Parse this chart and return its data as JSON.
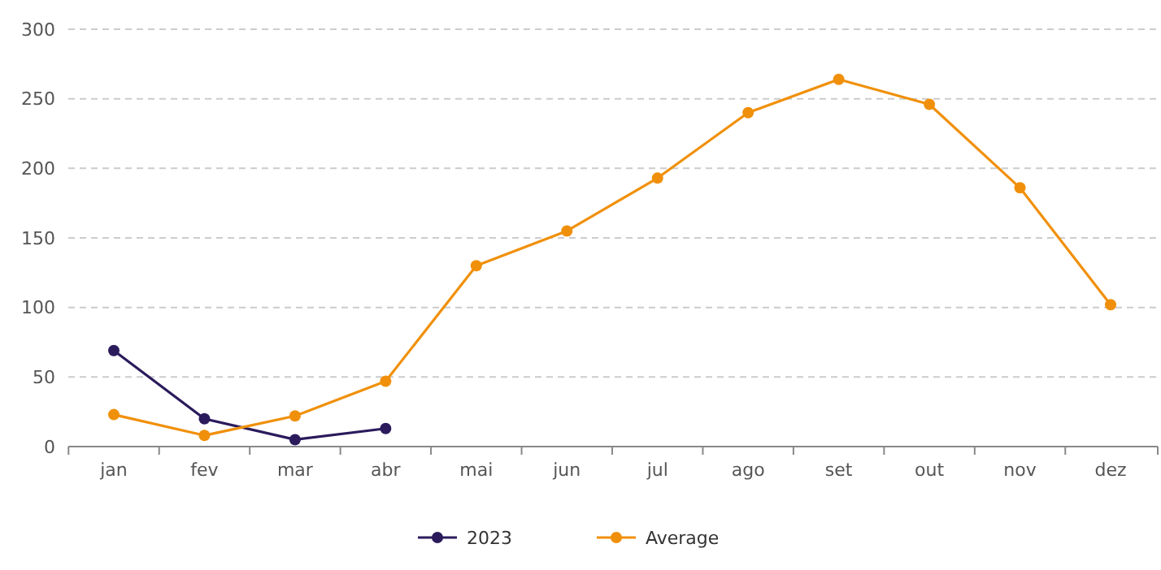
{
  "chart_data": {
    "type": "line",
    "categories": [
      "jan",
      "fev",
      "mar",
      "abr",
      "mai",
      "jun",
      "jul",
      "ago",
      "set",
      "out",
      "nov",
      "dez"
    ],
    "series": [
      {
        "name": "2023",
        "color": "#2b1b5c",
        "values": [
          69,
          20,
          5,
          13,
          null,
          null,
          null,
          null,
          null,
          null,
          null,
          null
        ]
      },
      {
        "name": "Average",
        "color": "#f0900a",
        "values": [
          23,
          8,
          22,
          47,
          130,
          155,
          193,
          240,
          264,
          246,
          186,
          102
        ]
      }
    ],
    "ylim": [
      0,
      300
    ],
    "yticks": [
      0,
      50,
      100,
      150,
      200,
      250,
      300
    ],
    "grid": "y",
    "legend": "bottom",
    "marker": "circle",
    "line_style": "solid"
  }
}
